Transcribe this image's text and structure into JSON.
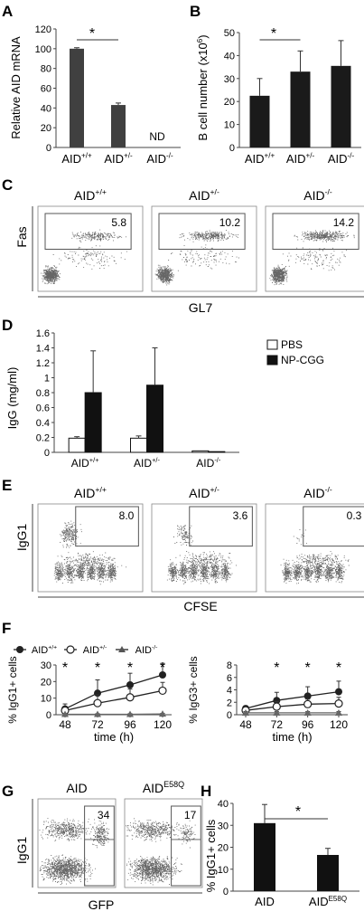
{
  "panels": {
    "A": {
      "letter": "A",
      "star": "*",
      "nd": "ND",
      "chart_data": {
        "type": "bar",
        "categories": [
          "AID+/+",
          "AID+/-",
          "AID-/-"
        ],
        "values": [
          100,
          43,
          0
        ],
        "errors": [
          1,
          2,
          0
        ],
        "ylabel": "Relative AID mRNA",
        "ylim": [
          0,
          120
        ],
        "yticks": [
          "0",
          "20",
          "40",
          "60",
          "80",
          "100",
          "120"
        ]
      }
    },
    "B": {
      "letter": "B",
      "star": "*",
      "chart_data": {
        "type": "bar",
        "categories": [
          "AID+/+",
          "AID+/-",
          "AID-/-"
        ],
        "values": [
          22.5,
          33,
          35.5
        ],
        "errors": [
          7.5,
          9,
          11
        ],
        "ylabel": "B cell number (x10",
        "ylabel_sup": "6",
        "ylabel_end": ")",
        "ylim": [
          0,
          50
        ],
        "yticks": [
          "0",
          "10",
          "20",
          "30",
          "40",
          "50"
        ]
      }
    },
    "C": {
      "letter": "C",
      "ylabel": "Fas",
      "xlabel": "GL7",
      "plots": [
        {
          "label": "AID+/+",
          "value": "5.8"
        },
        {
          "label": "AID+/-",
          "value": "10.2"
        },
        {
          "label": "AID-/-",
          "value": "14.2"
        }
      ]
    },
    "D": {
      "letter": "D",
      "legend": [
        "PBS",
        "NP-CGG"
      ],
      "chart_data": {
        "type": "bar",
        "categories": [
          "AID+/+",
          "AID+/-",
          "AID-/-"
        ],
        "series": [
          {
            "name": "PBS",
            "values": [
              0.19,
              0.19,
              0.02
            ],
            "errors": [
              0.02,
              0.03,
              0
            ]
          },
          {
            "name": "NP-CGG",
            "values": [
              0.8,
              0.9,
              0.01
            ],
            "errors": [
              0.56,
              0.5,
              0
            ]
          }
        ],
        "ylabel": "IgG (mg/ml)",
        "ylim": [
          0,
          1.6
        ],
        "yticks": [
          "0",
          "0.2",
          "0.4",
          "0.6",
          "0.8",
          "1",
          "1.2",
          "1.4",
          "1.6"
        ]
      }
    },
    "E": {
      "letter": "E",
      "ylabel": "IgG1",
      "xlabel": "CFSE",
      "plots": [
        {
          "label": "AID+/+",
          "value": "8.0"
        },
        {
          "label": "AID+/-",
          "value": "3.6"
        },
        {
          "label": "AID-/-",
          "value": "0.3"
        }
      ]
    },
    "F": {
      "letter": "F",
      "legend": [
        "AID+/+",
        "AID+/-",
        "AID-/-"
      ],
      "star": "*",
      "chart_data": [
        {
          "type": "line",
          "x": [
            48,
            72,
            96,
            120
          ],
          "xlabel": "time (h)",
          "ylabel": "% IgG1+ cells",
          "ylim": [
            0,
            30
          ],
          "yticks": [
            "0",
            "10",
            "20",
            "30"
          ],
          "stars_at": [
            48,
            72,
            96,
            120
          ],
          "series": [
            {
              "name": "AID+/+",
              "values": [
                3.5,
                13,
                18,
                24
              ],
              "errors": [
                3,
                8,
                7,
                7
              ]
            },
            {
              "name": "AID+/-",
              "values": [
                2.5,
                7,
                10.5,
                14.5
              ],
              "errors": [
                2,
                5,
                5,
                5
              ]
            },
            {
              "name": "AID-/-",
              "values": [
                0.3,
                0.3,
                0.3,
                0.5
              ],
              "errors": [
                0.3,
                0.3,
                0.3,
                0.3
              ]
            }
          ]
        },
        {
          "type": "line",
          "x": [
            48,
            72,
            96,
            120
          ],
          "xlabel": "time (h)",
          "ylabel": "% IgG3+ cells",
          "ylim": [
            0,
            8
          ],
          "yticks": [
            "0",
            "2",
            "4",
            "6",
            "8"
          ],
          "stars_at": [
            72,
            96,
            120
          ],
          "series": [
            {
              "name": "AID+/+",
              "values": [
                1.0,
                2.3,
                3.0,
                3.7
              ],
              "errors": [
                0.4,
                1.3,
                1.5,
                1.7
              ]
            },
            {
              "name": "AID+/-",
              "values": [
                0.7,
                1.3,
                1.7,
                1.8
              ],
              "errors": [
                0.3,
                0.8,
                0.8,
                1.0
              ]
            },
            {
              "name": "AID-/-",
              "values": [
                0.3,
                0.3,
                0.3,
                0.3
              ],
              "errors": [
                0.2,
                0.2,
                0.2,
                0.2
              ]
            }
          ]
        }
      ]
    },
    "G": {
      "letter": "G",
      "ylabel": "IgG1",
      "xlabel": "GFP",
      "plots": [
        {
          "label": "AID",
          "label_sup": "",
          "value": "34"
        },
        {
          "label": "AID",
          "label_sup": "E58Q",
          "value": "17"
        }
      ]
    },
    "H": {
      "letter": "H",
      "star": "*",
      "chart_data": {
        "type": "bar",
        "categories": [
          "AID",
          "AID E58Q"
        ],
        "values": [
          31,
          16.5
        ],
        "errors": [
          8.5,
          3
        ],
        "ylabel": "% IgG1+ cells",
        "ylim": [
          0,
          40
        ],
        "yticks": [
          "0",
          "10",
          "20",
          "30",
          "40"
        ]
      }
    }
  }
}
